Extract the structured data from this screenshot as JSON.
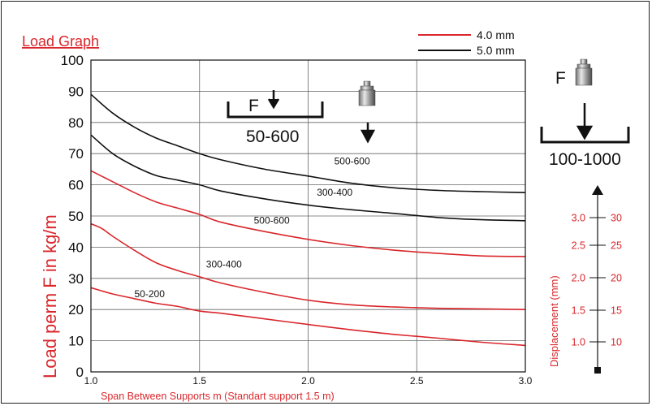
{
  "chart_data": {
    "type": "line",
    "title": "Load Graph",
    "xlabel": "Span Between Supports m (Standart support 1.5 m)",
    "ylabel": "Load perm F in kg/m",
    "xlim": [
      1.0,
      3.0
    ],
    "ylim": [
      0,
      100
    ],
    "x_ticks": [
      "1.0",
      "1.5",
      "2.0",
      "2.5",
      "3.0"
    ],
    "y_ticks": [
      "0",
      "10",
      "20",
      "30",
      "40",
      "50",
      "60",
      "70",
      "80",
      "90",
      "100"
    ],
    "grid": true,
    "legend": [
      {
        "label": "4.0 mm",
        "color": "#d9262b"
      },
      {
        "label": "5.0 mm",
        "color": "#111111"
      }
    ],
    "series": [
      {
        "legend": "5.0 mm",
        "label": "500-600",
        "color": "#111111",
        "label_at": [
          2.12,
          66.5
        ],
        "points": [
          [
            1.0,
            89
          ],
          [
            1.1,
            83
          ],
          [
            1.2,
            78.5
          ],
          [
            1.3,
            75
          ],
          [
            1.4,
            72.5
          ],
          [
            1.5,
            70
          ],
          [
            1.6,
            68
          ],
          [
            1.8,
            65
          ],
          [
            2.0,
            62.8
          ],
          [
            2.2,
            60.5
          ],
          [
            2.4,
            59
          ],
          [
            2.6,
            58.2
          ],
          [
            2.8,
            57.8
          ],
          [
            3.0,
            57.5
          ]
        ]
      },
      {
        "legend": "5.0 mm",
        "label": "300-400",
        "color": "#111111",
        "label_at": [
          2.04,
          56.5
        ],
        "points": [
          [
            1.0,
            76
          ],
          [
            1.1,
            70
          ],
          [
            1.2,
            66
          ],
          [
            1.3,
            63
          ],
          [
            1.4,
            61.5
          ],
          [
            1.5,
            60
          ],
          [
            1.6,
            58
          ],
          [
            1.8,
            55.5
          ],
          [
            2.0,
            53.5
          ],
          [
            2.2,
            52
          ],
          [
            2.4,
            50.8
          ],
          [
            2.6,
            49.5
          ],
          [
            2.8,
            48.8
          ],
          [
            3.0,
            48.5
          ]
        ]
      },
      {
        "legend": "4.0 mm",
        "label": "500-600",
        "color": "#d9262b",
        "label_at": [
          1.75,
          47.5
        ],
        "points": [
          [
            1.0,
            64.5
          ],
          [
            1.1,
            61
          ],
          [
            1.2,
            57.5
          ],
          [
            1.3,
            54.5
          ],
          [
            1.4,
            52.5
          ],
          [
            1.5,
            50.5
          ],
          [
            1.6,
            48
          ],
          [
            1.8,
            45
          ],
          [
            2.0,
            42.5
          ],
          [
            2.2,
            40.5
          ],
          [
            2.4,
            39
          ],
          [
            2.6,
            38
          ],
          [
            2.8,
            37.2
          ],
          [
            3.0,
            37
          ]
        ]
      },
      {
        "legend": "4.0 mm",
        "label": "300-400",
        "color": "#d9262b",
        "label_at": [
          1.53,
          33.5
        ],
        "points": [
          [
            1.0,
            47.5
          ],
          [
            1.05,
            46
          ],
          [
            1.1,
            43.5
          ],
          [
            1.2,
            39
          ],
          [
            1.3,
            35
          ],
          [
            1.4,
            32.5
          ],
          [
            1.5,
            30.5
          ],
          [
            1.6,
            28.5
          ],
          [
            1.8,
            25.5
          ],
          [
            2.0,
            23
          ],
          [
            2.2,
            21.5
          ],
          [
            2.4,
            20.8
          ],
          [
            2.6,
            20.4
          ],
          [
            2.8,
            20.2
          ],
          [
            3.0,
            20
          ]
        ]
      },
      {
        "legend": "4.0 mm",
        "label": "50-200",
        "color": "#d9262b",
        "label_at": [
          1.2,
          24
        ],
        "points": [
          [
            1.0,
            27
          ],
          [
            1.1,
            25
          ],
          [
            1.2,
            23.5
          ],
          [
            1.3,
            22
          ],
          [
            1.4,
            21
          ],
          [
            1.5,
            19.5
          ],
          [
            1.6,
            18.8
          ],
          [
            1.8,
            17
          ],
          [
            2.0,
            15.2
          ],
          [
            2.2,
            13.5
          ],
          [
            2.4,
            12
          ],
          [
            2.6,
            10.8
          ],
          [
            2.8,
            9.5
          ],
          [
            3.0,
            8.5
          ]
        ]
      }
    ],
    "annotations": {
      "inner_range": "50-600",
      "outer_range": "100-1000",
      "force_label": "F"
    },
    "displacement_scale": {
      "label": "Displacement (mm)",
      "rows": [
        {
          "left": "3.0",
          "right": "30"
        },
        {
          "left": "2.5",
          "right": "25"
        },
        {
          "left": "2.0",
          "right": "20"
        },
        {
          "left": "1.5",
          "right": "15"
        },
        {
          "left": "1.0",
          "right": "10"
        }
      ]
    }
  }
}
